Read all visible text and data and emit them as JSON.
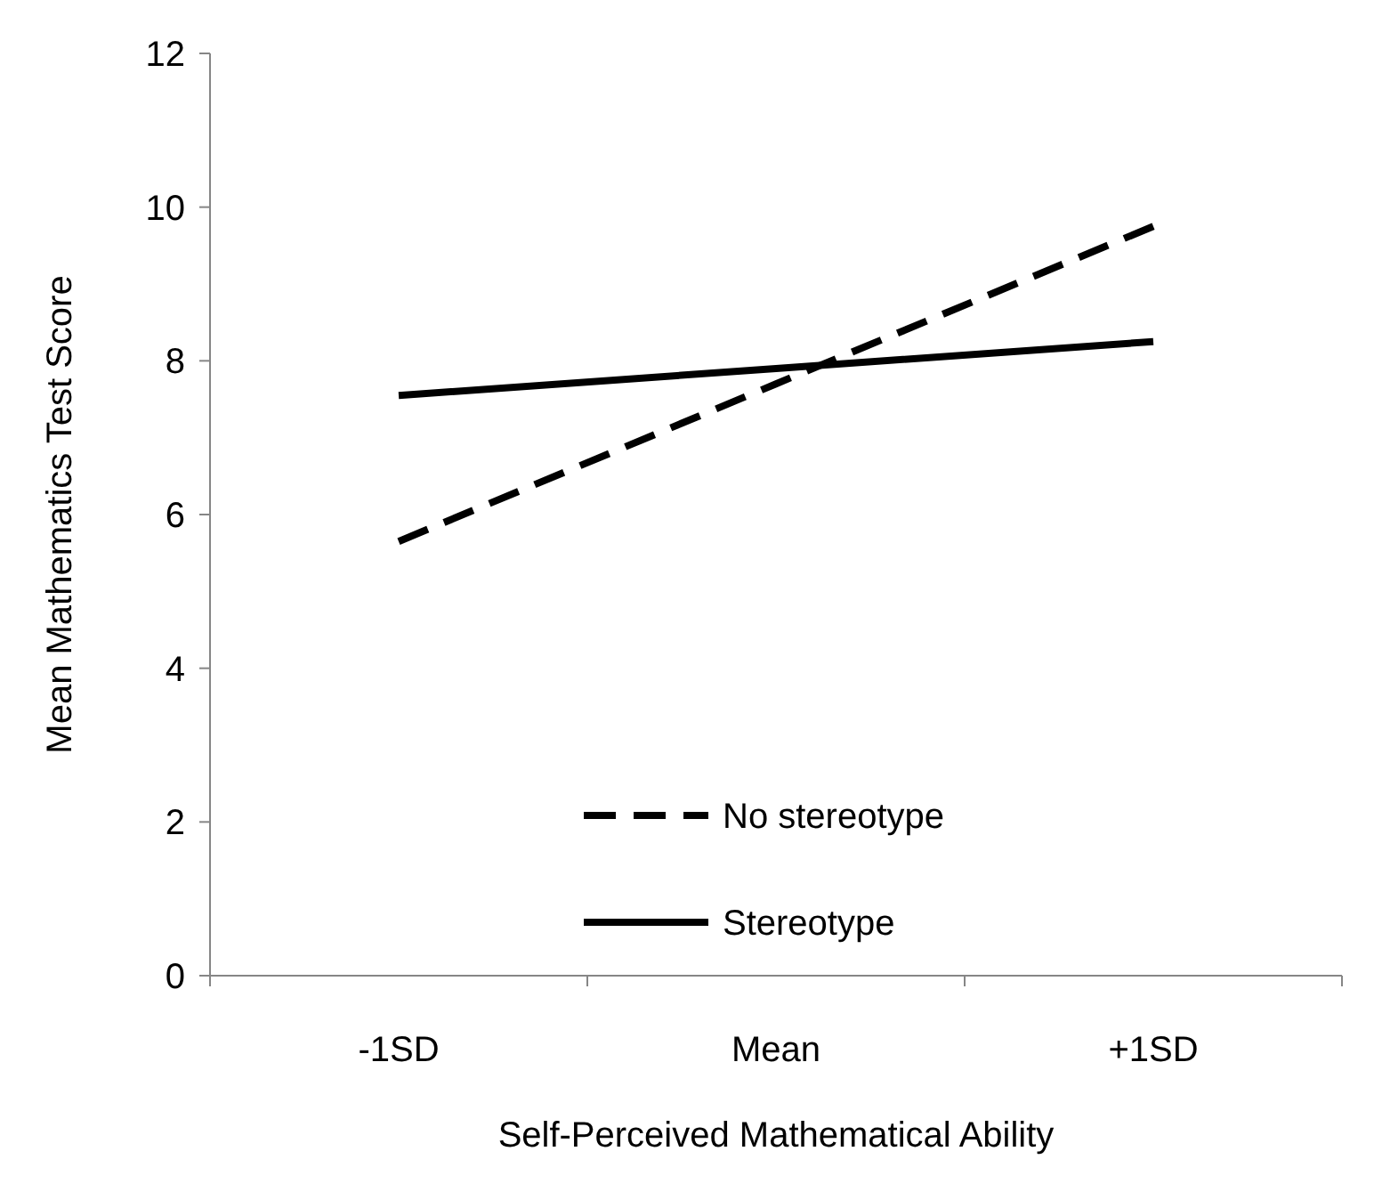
{
  "chart_data": {
    "type": "line",
    "xlabel": "Self-Perceived Mathematical Ability",
    "ylabel": "Mean Mathematics Test Score",
    "categories": [
      "-1SD",
      "Mean",
      "+1SD"
    ],
    "series": [
      {
        "name": "No stereotype",
        "color": "#000000",
        "line_style": "dashed",
        "values": [
          5.65,
          7.7,
          9.75
        ]
      },
      {
        "name": "Stereotype",
        "color": "#000000",
        "line_style": "solid",
        "values": [
          7.55,
          7.9,
          8.25
        ]
      }
    ],
    "ylim": [
      0,
      12
    ],
    "yticks": [
      0,
      2,
      4,
      6,
      8,
      10,
      12
    ],
    "grid": false,
    "legend": "bottom"
  }
}
